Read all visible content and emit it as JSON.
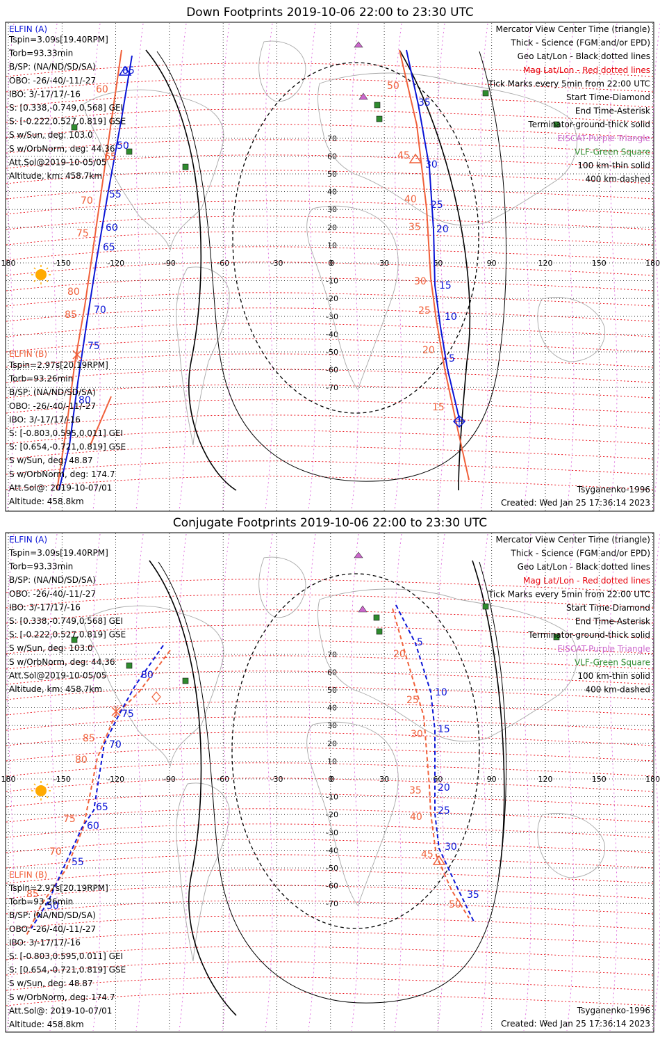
{
  "panels": [
    {
      "title": "Down Footprints 2019-10-06 22:00 to 23:30 UTC",
      "elfin_a": {
        "heading": "ELFIN (A)",
        "lines": [
          "Tspin=3.09s[19.40RPM]",
          "Torb=93.33min",
          "B/SP: (NA/ND/SD/SA)",
          "OBO: -26/-40/-11/-27",
          "IBO: 3/-17/17/-16",
          "S: [0.338,-0.749,0.568] GEI",
          "S: [-0.222,0.527,0.819] GSE",
          "S w/Sun, deg: 103.0",
          "S w/OrbNorm, deg: 44.36",
          "Att.Sol@2019-10-05/05",
          "Altitude, km: 458.7km"
        ]
      },
      "elfin_b": {
        "heading": "ELFIN (B)",
        "lines": [
          "Tspin=2.97s[20.19RPM]",
          "Torb=93.26min",
          "B/SP: (NA/ND/SD/SA)",
          "OBO: -26/-40/-11/-27",
          "IBO: 3/-17/17/-16",
          "S: [-0.803,0.595,0.011] GEI",
          "S: [0.654,-0.721,0.819] GSE",
          "S w/Sun, deg: 48.87",
          "S w/OrbNorm, deg: 174.7",
          "Att.Sol@: 2019-10-07/01",
          "Altitude: 458.8km"
        ]
      },
      "legend": [
        {
          "text": "Mercator View Center Time (triangle)",
          "color": "#000000"
        },
        {
          "text": "Thick - Science (FGM and/or EPD)",
          "color": "#000000"
        },
        {
          "text": "Geo Lat/Lon - Black dotted lines",
          "color": "#000000"
        },
        {
          "text": "Mag Lat/Lon - Red dotted lines",
          "color": "#e8000b"
        },
        {
          "text": "Tick Marks every 5min from 22:00 UTC",
          "color": "#000000"
        },
        {
          "text": "Start Time-Diamond",
          "color": "#000000"
        },
        {
          "text": "End Time-Asterisk",
          "color": "#000000"
        },
        {
          "text": "Terminator-ground-thick solid",
          "color": "#000000"
        },
        {
          "text": "EISCAT-Purple Triangle",
          "color": "#cc66cc"
        },
        {
          "text": "VLF-Green Square",
          "color": "#2e8b2e"
        },
        {
          "text": "100 km-thin solid",
          "color": "#000000"
        },
        {
          "text": "400 km-dashed",
          "color": "#000000"
        }
      ],
      "model": "Tsyganenko-1996",
      "created": "Created: Wed Jan 25 17:36:14 2023",
      "lon_labels": [
        "180",
        "-150",
        "-120",
        "-90",
        "-60",
        "-30",
        "0",
        "30",
        "60",
        "90",
        "120",
        "150",
        "180"
      ],
      "lat_labels": [
        "70",
        "60",
        "50",
        "40",
        "30",
        "20",
        "10",
        "0",
        "-10",
        "-20",
        "-30",
        "-40",
        "-50",
        "-60",
        "-70"
      ],
      "track_b_labels": [
        "50",
        "55",
        "60",
        "65",
        "70",
        "75",
        "80",
        "85"
      ],
      "track_b_mag_labels": [
        "60",
        "65",
        "70",
        "75",
        "80",
        "85"
      ],
      "track_a_labels": [
        "35",
        "30",
        "25",
        "20",
        "15",
        "10",
        "5"
      ],
      "track_a_mag_labels": [
        "50",
        "45",
        "40",
        "35",
        "30",
        "25",
        "20",
        "15"
      ]
    },
    {
      "title": "Conjugate Footprints 2019-10-06 22:00 to 23:30 UTC",
      "elfin_a": {
        "heading": "ELFIN (A)",
        "lines": [
          "Tspin=3.09s[19.40RPM]",
          "Torb=93.33min",
          "B/SP: (NA/ND/SD/SA)",
          "OBO: -26/-40/-11/-27",
          "IBO: 3/-17/17/-16",
          "S: [0.338,-0.749,0.568] GEI",
          "S: [-0.222,0.527,0.819] GSE",
          "S w/Sun, deg: 103.0",
          "S w/OrbNorm, deg: 44.36",
          "Att.Sol@2019-10-05/05",
          "Altitude, km: 458.7km"
        ]
      },
      "elfin_b": {
        "heading": "ELFIN (B)",
        "lines": [
          "Tspin=2.97s[20.19RPM]",
          "Torb=93.26min",
          "B/SP: (NA/ND/SD/SA)",
          "OBO: -26/-40/-11/-27",
          "IBO: 3/-17/17/-16",
          "S: [-0.803,0.595,0.011] GEI",
          "S: [0.654,-0.721,0.819] GSE",
          "S w/Sun, deg: 48.87",
          "S w/OrbNorm, deg: 174.7",
          "Att.Sol@: 2019-10-07/01",
          "Altitude: 458.8km"
        ]
      },
      "legend": [
        {
          "text": "Mercator View Center Time (triangle)",
          "color": "#000000"
        },
        {
          "text": "Thick - Science (FGM and/or EPD)",
          "color": "#000000"
        },
        {
          "text": "Geo Lat/Lon - Black dotted lines",
          "color": "#000000"
        },
        {
          "text": "Mag Lat/Lon - Red dotted lines",
          "color": "#e8000b"
        },
        {
          "text": "Tick Marks every 5min from 22:00 UTC",
          "color": "#000000"
        },
        {
          "text": "Start Time-Diamond",
          "color": "#000000"
        },
        {
          "text": "End Time-Asterisk",
          "color": "#000000"
        },
        {
          "text": "Terminator-ground-thick solid",
          "color": "#000000"
        },
        {
          "text": "EISCAT-Purple Triangle",
          "color": "#cc66cc"
        },
        {
          "text": "VLF-Green Square",
          "color": "#2e8b2e"
        },
        {
          "text": "100 km-thin solid",
          "color": "#000000"
        },
        {
          "text": "400 km-dashed",
          "color": "#000000"
        }
      ],
      "model": "Tsyganenko-1996",
      "created": "Created: Wed Jan 25 17:36:14 2023",
      "lon_labels": [
        "180",
        "-150",
        "-120",
        "-90",
        "-60",
        "-30",
        "0",
        "30",
        "60",
        "90",
        "120",
        "150",
        "180"
      ],
      "lat_labels": [
        "70",
        "60",
        "50",
        "40",
        "30",
        "20",
        "10",
        "0",
        "-10",
        "-20",
        "-30",
        "-40",
        "-50",
        "-60",
        "-70"
      ],
      "track_b_labels": [
        "80",
        "75",
        "70",
        "65",
        "60",
        "55",
        "50"
      ],
      "track_b_mag_labels": [
        "85",
        "80",
        "75",
        "70",
        "85"
      ],
      "track_a_labels": [
        "5",
        "10",
        "15",
        "20",
        "25",
        "30",
        "35"
      ],
      "track_a_mag_labels": [
        "20",
        "25",
        "30",
        "35",
        "40",
        "45",
        "50"
      ]
    }
  ],
  "colors": {
    "elfin_a": "#0a14d6",
    "elfin_b": "#f0603a",
    "mag_grid": "#e8000b",
    "mag_lon": "#dd66dd",
    "geo_grid": "#000000",
    "coast": "#a8a8a8",
    "vlf": "#2e8b2e",
    "eiscat": "#cc66cc",
    "sun": "#ffaa00"
  }
}
